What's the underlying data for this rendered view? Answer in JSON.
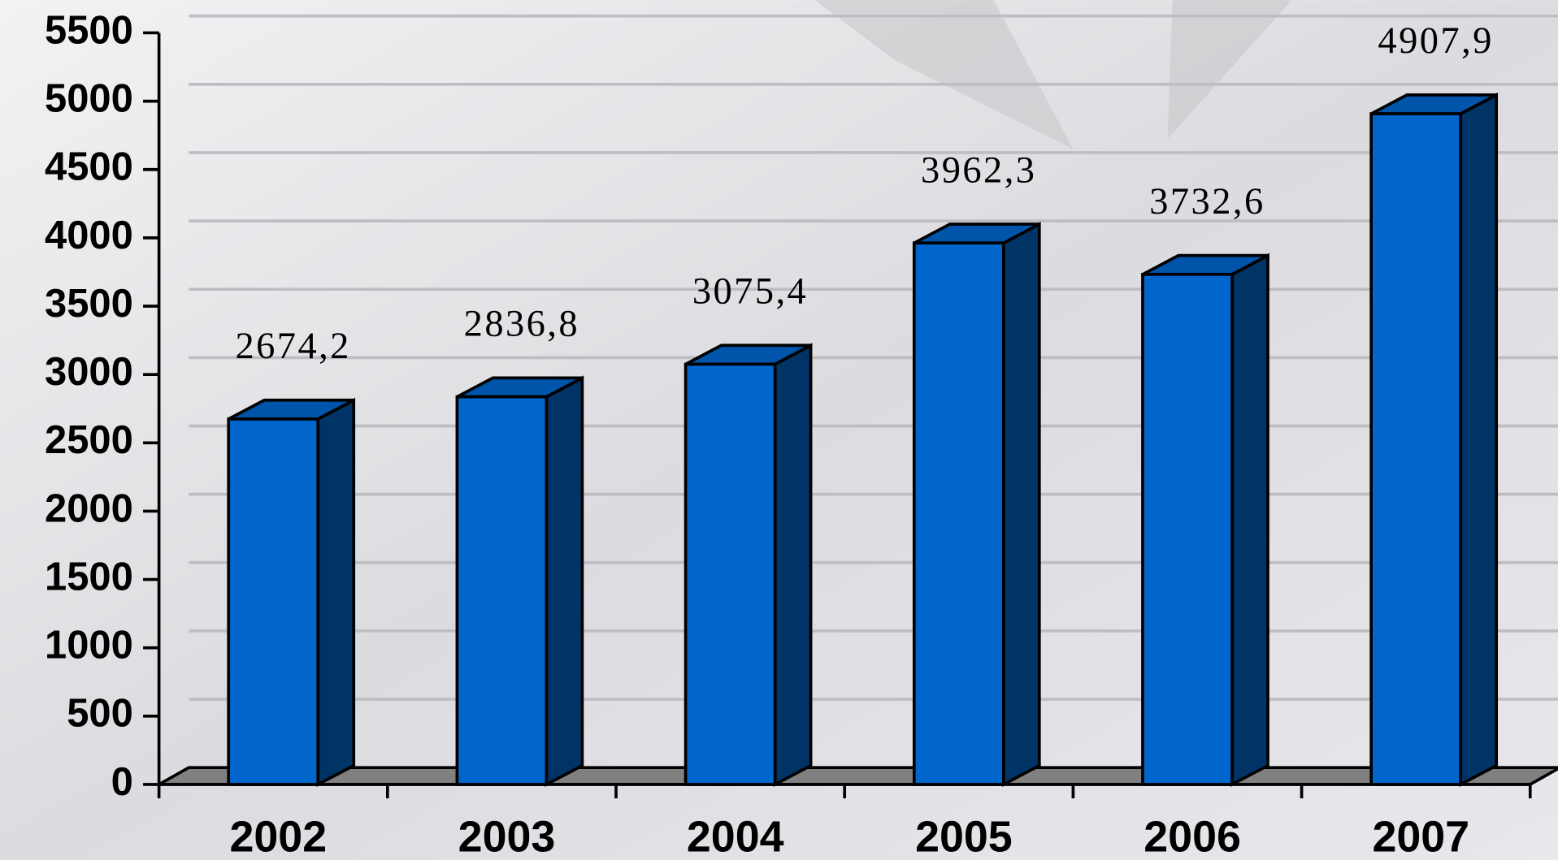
{
  "chart_data": {
    "type": "bar3d",
    "categories": [
      "2002",
      "2003",
      "2004",
      "2005",
      "2006",
      "2007"
    ],
    "values": [
      2674.2,
      2836.8,
      3075.4,
      3962.3,
      3732.6,
      4907.9
    ],
    "value_labels": [
      "2674,2",
      "2836,8",
      "3075,4",
      "3962,3",
      "3732,6",
      "4907,9"
    ],
    "color": "#0066cc",
    "ylim": [
      0,
      5500
    ],
    "yticks": [
      0,
      500,
      1000,
      1500,
      2000,
      2500,
      3000,
      3500,
      4000,
      4500,
      5000,
      5500
    ],
    "grid": true
  }
}
